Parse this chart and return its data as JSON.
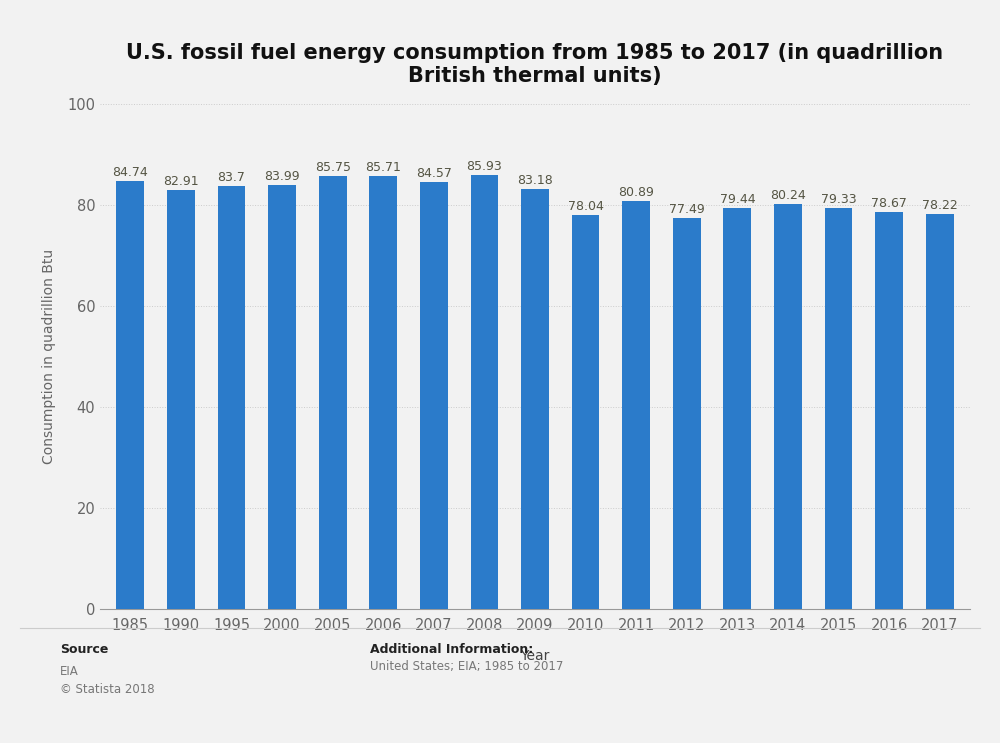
{
  "title": "U.S. fossil fuel energy consumption from 1985 to 2017 (in quadrillion\nBritish thermal units)",
  "xlabel": "Year",
  "ylabel": "Consumption in quadrillion Btu",
  "categories": [
    "1985",
    "1990",
    "1995",
    "2000",
    "2005",
    "2006",
    "2007",
    "2008",
    "2009",
    "2010",
    "2011",
    "2012",
    "2013",
    "2014",
    "2015",
    "2016",
    "2017"
  ],
  "values": [
    84.74,
    82.91,
    83.7,
    83.99,
    85.75,
    85.71,
    84.57,
    85.93,
    83.18,
    78.04,
    80.89,
    77.49,
    79.44,
    80.24,
    79.33,
    78.67,
    78.22
  ],
  "bar_color": "#2b7bca",
  "background_color": "#f2f2f2",
  "plot_bg_color": "#f2f2f2",
  "ylim": [
    0,
    100
  ],
  "yticks": [
    0,
    20,
    40,
    60,
    80,
    100
  ],
  "title_fontsize": 15,
  "label_fontsize": 10,
  "tick_fontsize": 10.5,
  "value_fontsize": 9,
  "value_color": "#555544",
  "grid_color": "#cccccc",
  "source_label": "Source",
  "source_body": "EIA\n© Statista 2018",
  "additional_label": "Additional Information:",
  "additional_body": "United States; EIA; 1985 to 2017"
}
